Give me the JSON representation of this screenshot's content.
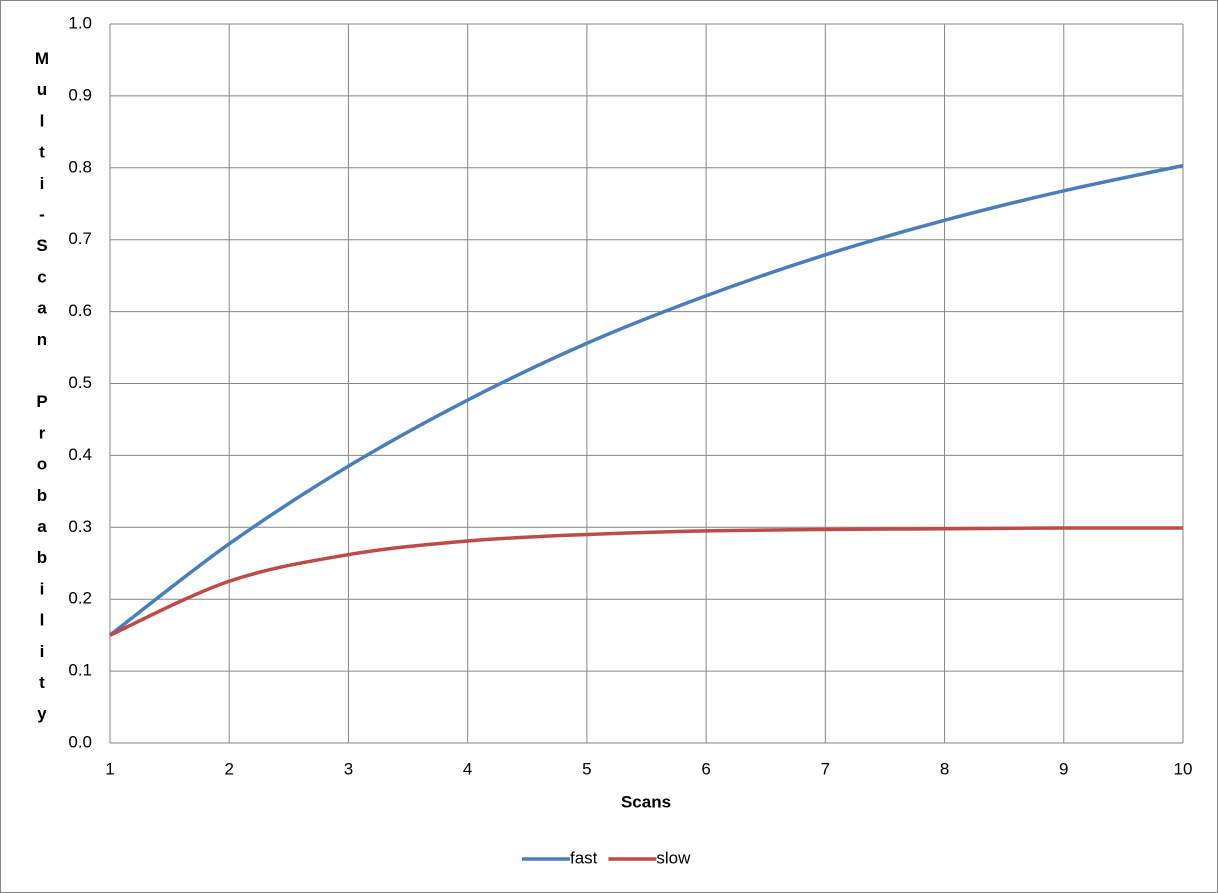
{
  "chart_data": {
    "type": "line",
    "x_label": "Scans",
    "y_label": "Multi-Scan Probability",
    "x": [
      1,
      2,
      3,
      4,
      5,
      6,
      7,
      8,
      9,
      10
    ],
    "series": [
      {
        "name": "fast",
        "color": "#4a7ebb",
        "values": [
          0.15,
          0.277,
          0.385,
          0.477,
          0.556,
          0.622,
          0.679,
          0.727,
          0.768,
          0.803
        ]
      },
      {
        "name": "slow",
        "color": "#be4b48",
        "values": [
          0.15,
          0.225,
          0.262,
          0.281,
          0.29,
          0.295,
          0.297,
          0.298,
          0.299,
          0.299
        ]
      }
    ],
    "xlim": [
      1,
      10
    ],
    "xticks": [
      1,
      2,
      3,
      4,
      5,
      6,
      7,
      8,
      9,
      10
    ],
    "ylim": [
      0,
      1
    ],
    "yticks": [
      {
        "value": 0,
        "label": "0.0"
      },
      0.1,
      0.2,
      0.3,
      0.4,
      0.5,
      0.6,
      0.7,
      0.8,
      0.9,
      {
        "value": 1,
        "label": "1.0"
      }
    ],
    "grid": true,
    "legend": "bottom"
  }
}
